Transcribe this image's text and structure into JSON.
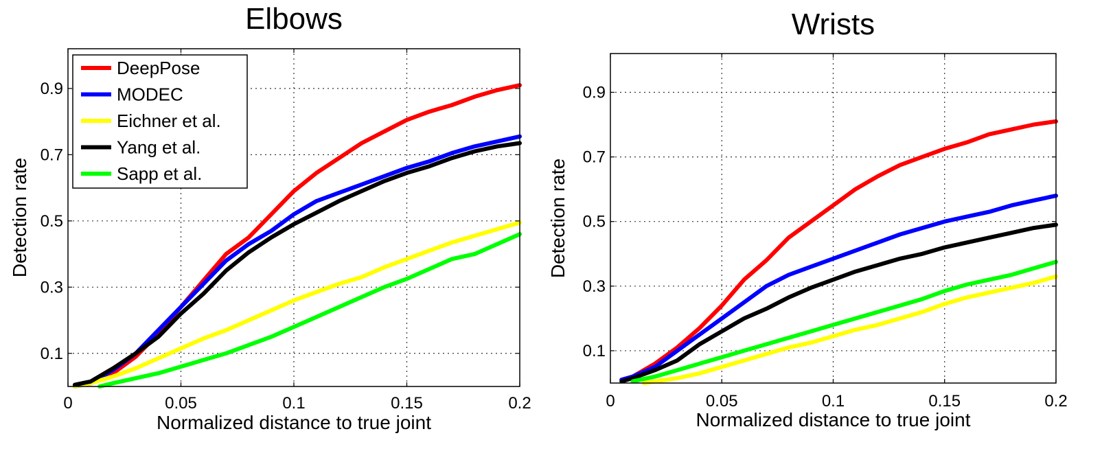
{
  "chart_data": [
    {
      "type": "line",
      "title": "Elbows",
      "xlabel": "Normalized distance to true joint",
      "ylabel": "Detection rate",
      "xlim": [
        0,
        0.2
      ],
      "ylim": [
        0,
        1.02
      ],
      "xticks": [
        0,
        0.05,
        0.1,
        0.15,
        0.2
      ],
      "xtick_labels": [
        "0",
        "0.05",
        "0.1",
        "0.15",
        "0.2"
      ],
      "yticks": [
        0.1,
        0.3,
        0.5,
        0.7,
        0.9
      ],
      "ytick_labels": [
        "0.1",
        "0.3",
        "0.5",
        "0.7",
        "0.9"
      ],
      "grid": true,
      "legend_position": "top-left",
      "series": [
        {
          "name": "DeepPose",
          "color": "#ff0000",
          "points": [
            [
              0.003,
              0.0
            ],
            [
              0.01,
              0.01
            ],
            [
              0.02,
              0.04
            ],
            [
              0.03,
              0.09
            ],
            [
              0.04,
              0.16
            ],
            [
              0.05,
              0.24
            ],
            [
              0.06,
              0.32
            ],
            [
              0.07,
              0.4
            ],
            [
              0.08,
              0.45
            ],
            [
              0.09,
              0.52
            ],
            [
              0.1,
              0.59
            ],
            [
              0.11,
              0.645
            ],
            [
              0.12,
              0.69
            ],
            [
              0.13,
              0.735
            ],
            [
              0.14,
              0.77
            ],
            [
              0.15,
              0.805
            ],
            [
              0.16,
              0.83
            ],
            [
              0.17,
              0.85
            ],
            [
              0.18,
              0.875
            ],
            [
              0.19,
              0.895
            ],
            [
              0.2,
              0.91
            ]
          ]
        },
        {
          "name": "MODEC",
          "color": "#0000ff",
          "points": [
            [
              0.003,
              0.0
            ],
            [
              0.01,
              0.01
            ],
            [
              0.02,
              0.05
            ],
            [
              0.03,
              0.1
            ],
            [
              0.04,
              0.17
            ],
            [
              0.05,
              0.24
            ],
            [
              0.06,
              0.31
            ],
            [
              0.07,
              0.38
            ],
            [
              0.08,
              0.43
            ],
            [
              0.09,
              0.47
            ],
            [
              0.1,
              0.52
            ],
            [
              0.11,
              0.56
            ],
            [
              0.12,
              0.585
            ],
            [
              0.13,
              0.61
            ],
            [
              0.14,
              0.635
            ],
            [
              0.15,
              0.66
            ],
            [
              0.16,
              0.68
            ],
            [
              0.17,
              0.705
            ],
            [
              0.18,
              0.725
            ],
            [
              0.19,
              0.74
            ],
            [
              0.2,
              0.755
            ]
          ]
        },
        {
          "name": "Eichner et al.",
          "color": "#ffff00",
          "points": [
            [
              0.003,
              0.0
            ],
            [
              0.01,
              0.01
            ],
            [
              0.02,
              0.03
            ],
            [
              0.03,
              0.055
            ],
            [
              0.04,
              0.085
            ],
            [
              0.05,
              0.115
            ],
            [
              0.06,
              0.145
            ],
            [
              0.07,
              0.17
            ],
            [
              0.08,
              0.2
            ],
            [
              0.09,
              0.23
            ],
            [
              0.1,
              0.26
            ],
            [
              0.11,
              0.285
            ],
            [
              0.12,
              0.31
            ],
            [
              0.13,
              0.33
            ],
            [
              0.14,
              0.36
            ],
            [
              0.15,
              0.385
            ],
            [
              0.16,
              0.41
            ],
            [
              0.17,
              0.435
            ],
            [
              0.18,
              0.455
            ],
            [
              0.19,
              0.475
            ],
            [
              0.2,
              0.495
            ]
          ]
        },
        {
          "name": "Yang et al.",
          "color": "#000000",
          "points": [
            [
              0.003,
              0.005
            ],
            [
              0.01,
              0.015
            ],
            [
              0.02,
              0.055
            ],
            [
              0.03,
              0.1
            ],
            [
              0.04,
              0.15
            ],
            [
              0.05,
              0.22
            ],
            [
              0.06,
              0.28
            ],
            [
              0.07,
              0.35
            ],
            [
              0.08,
              0.405
            ],
            [
              0.09,
              0.45
            ],
            [
              0.1,
              0.49
            ],
            [
              0.11,
              0.525
            ],
            [
              0.12,
              0.56
            ],
            [
              0.13,
              0.59
            ],
            [
              0.14,
              0.62
            ],
            [
              0.15,
              0.645
            ],
            [
              0.16,
              0.665
            ],
            [
              0.17,
              0.69
            ],
            [
              0.18,
              0.71
            ],
            [
              0.19,
              0.725
            ],
            [
              0.2,
              0.735
            ]
          ]
        },
        {
          "name": "Sapp et al.",
          "color": "#00ff00",
          "points": [
            [
              0.014,
              0.0
            ],
            [
              0.02,
              0.01
            ],
            [
              0.03,
              0.025
            ],
            [
              0.04,
              0.04
            ],
            [
              0.05,
              0.06
            ],
            [
              0.06,
              0.08
            ],
            [
              0.07,
              0.1
            ],
            [
              0.08,
              0.125
            ],
            [
              0.09,
              0.15
            ],
            [
              0.1,
              0.18
            ],
            [
              0.11,
              0.21
            ],
            [
              0.12,
              0.24
            ],
            [
              0.13,
              0.27
            ],
            [
              0.14,
              0.3
            ],
            [
              0.15,
              0.325
            ],
            [
              0.16,
              0.355
            ],
            [
              0.17,
              0.385
            ],
            [
              0.18,
              0.4
            ],
            [
              0.19,
              0.43
            ],
            [
              0.2,
              0.46
            ]
          ]
        }
      ]
    },
    {
      "type": "line",
      "title": "Wrists",
      "xlabel": "Normalized distance to true joint",
      "ylabel": "Detection rate",
      "xlim": [
        0,
        0.2
      ],
      "ylim": [
        0,
        1.02
      ],
      "xticks": [
        0,
        0.05,
        0.1,
        0.15,
        0.2
      ],
      "xtick_labels": [
        "0",
        "0.05",
        "0.1",
        "0.15",
        "0.2"
      ],
      "yticks": [
        0.1,
        0.3,
        0.5,
        0.7,
        0.9
      ],
      "ytick_labels": [
        "0.1",
        "0.3",
        "0.5",
        "0.7",
        "0.9"
      ],
      "grid": true,
      "legend_position": "",
      "series": [
        {
          "name": "DeepPose",
          "color": "#ff0000",
          "points": [
            [
              0.005,
              0.01
            ],
            [
              0.01,
              0.02
            ],
            [
              0.02,
              0.06
            ],
            [
              0.03,
              0.11
            ],
            [
              0.04,
              0.17
            ],
            [
              0.05,
              0.24
            ],
            [
              0.06,
              0.32
            ],
            [
              0.07,
              0.38
            ],
            [
              0.08,
              0.45
            ],
            [
              0.09,
              0.5
            ],
            [
              0.1,
              0.55
            ],
            [
              0.11,
              0.6
            ],
            [
              0.12,
              0.64
            ],
            [
              0.13,
              0.675
            ],
            [
              0.14,
              0.7
            ],
            [
              0.15,
              0.725
            ],
            [
              0.16,
              0.745
            ],
            [
              0.17,
              0.77
            ],
            [
              0.18,
              0.785
            ],
            [
              0.19,
              0.8
            ],
            [
              0.2,
              0.81
            ]
          ]
        },
        {
          "name": "MODEC",
          "color": "#0000ff",
          "points": [
            [
              0.005,
              0.01
            ],
            [
              0.01,
              0.02
            ],
            [
              0.02,
              0.05
            ],
            [
              0.03,
              0.1
            ],
            [
              0.04,
              0.15
            ],
            [
              0.05,
              0.2
            ],
            [
              0.06,
              0.25
            ],
            [
              0.07,
              0.3
            ],
            [
              0.08,
              0.335
            ],
            [
              0.09,
              0.36
            ],
            [
              0.1,
              0.385
            ],
            [
              0.11,
              0.41
            ],
            [
              0.12,
              0.435
            ],
            [
              0.13,
              0.46
            ],
            [
              0.14,
              0.48
            ],
            [
              0.15,
              0.5
            ],
            [
              0.16,
              0.515
            ],
            [
              0.17,
              0.53
            ],
            [
              0.18,
              0.55
            ],
            [
              0.19,
              0.565
            ],
            [
              0.2,
              0.58
            ]
          ]
        },
        {
          "name": "Eichner et al.",
          "color": "#ffff00",
          "points": [
            [
              0.015,
              0.0
            ],
            [
              0.02,
              0.005
            ],
            [
              0.03,
              0.015
            ],
            [
              0.04,
              0.03
            ],
            [
              0.05,
              0.05
            ],
            [
              0.06,
              0.07
            ],
            [
              0.07,
              0.09
            ],
            [
              0.08,
              0.11
            ],
            [
              0.09,
              0.125
            ],
            [
              0.1,
              0.145
            ],
            [
              0.11,
              0.165
            ],
            [
              0.12,
              0.18
            ],
            [
              0.13,
              0.2
            ],
            [
              0.14,
              0.22
            ],
            [
              0.15,
              0.245
            ],
            [
              0.16,
              0.265
            ],
            [
              0.17,
              0.28
            ],
            [
              0.18,
              0.295
            ],
            [
              0.19,
              0.31
            ],
            [
              0.2,
              0.33
            ]
          ]
        },
        {
          "name": "Yang et al.",
          "color": "#000000",
          "points": [
            [
              0.005,
              0.005
            ],
            [
              0.01,
              0.015
            ],
            [
              0.02,
              0.04
            ],
            [
              0.03,
              0.07
            ],
            [
              0.04,
              0.12
            ],
            [
              0.05,
              0.16
            ],
            [
              0.06,
              0.2
            ],
            [
              0.07,
              0.23
            ],
            [
              0.08,
              0.265
            ],
            [
              0.09,
              0.295
            ],
            [
              0.1,
              0.32
            ],
            [
              0.11,
              0.345
            ],
            [
              0.12,
              0.365
            ],
            [
              0.13,
              0.385
            ],
            [
              0.14,
              0.4
            ],
            [
              0.15,
              0.42
            ],
            [
              0.16,
              0.435
            ],
            [
              0.17,
              0.45
            ],
            [
              0.18,
              0.465
            ],
            [
              0.19,
              0.48
            ],
            [
              0.2,
              0.49
            ]
          ]
        },
        {
          "name": "Sapp et al.",
          "color": "#00ff00",
          "points": [
            [
              0.01,
              0.005
            ],
            [
              0.02,
              0.02
            ],
            [
              0.03,
              0.04
            ],
            [
              0.04,
              0.06
            ],
            [
              0.05,
              0.08
            ],
            [
              0.06,
              0.1
            ],
            [
              0.07,
              0.12
            ],
            [
              0.08,
              0.14
            ],
            [
              0.09,
              0.16
            ],
            [
              0.1,
              0.18
            ],
            [
              0.11,
              0.2
            ],
            [
              0.12,
              0.22
            ],
            [
              0.13,
              0.24
            ],
            [
              0.14,
              0.26
            ],
            [
              0.15,
              0.285
            ],
            [
              0.16,
              0.305
            ],
            [
              0.17,
              0.32
            ],
            [
              0.18,
              0.335
            ],
            [
              0.19,
              0.355
            ],
            [
              0.2,
              0.375
            ]
          ]
        }
      ]
    }
  ]
}
